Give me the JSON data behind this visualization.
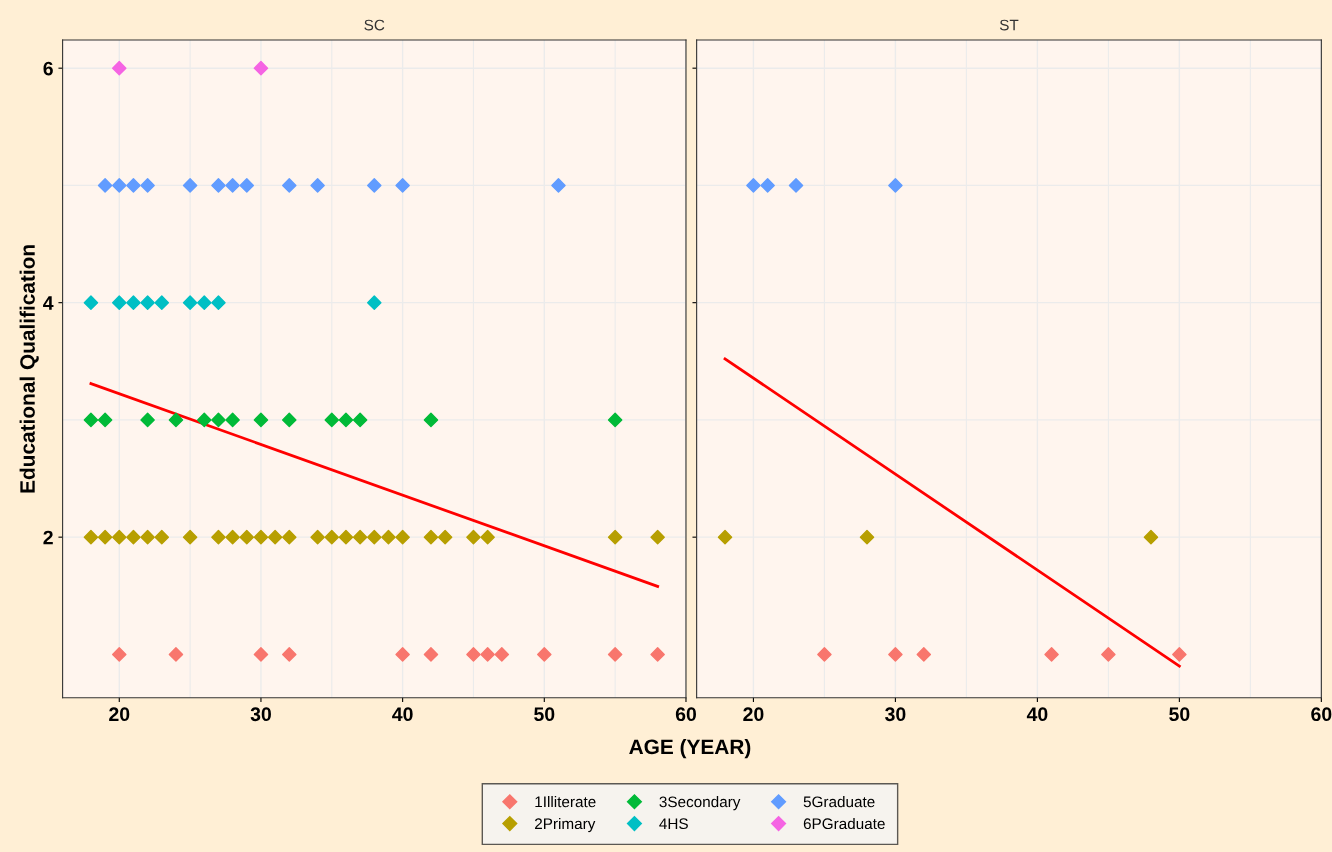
{
  "chart_data": [
    {
      "type": "scatter",
      "title": "SC",
      "xlabel": "AGE (YEAR)",
      "ylabel": "Educational Qualification",
      "xlim": [
        16,
        60
      ],
      "ylim": [
        0.63,
        6.24
      ],
      "xticks": [
        20,
        30,
        40,
        50,
        60
      ],
      "yticks": [
        2,
        4,
        6
      ],
      "grid": true,
      "marker": "diamond",
      "legend": "bottom",
      "series": [
        {
          "name": "1Illiterate",
          "color": "#f8766d",
          "x": [
            20,
            24,
            30,
            32,
            40,
            42,
            45,
            46,
            47,
            50,
            55,
            58
          ],
          "values": [
            1,
            1,
            1,
            1,
            1,
            1,
            1,
            1,
            1,
            1,
            1,
            1
          ]
        },
        {
          "name": "2Primary",
          "color": "#b79f00",
          "x": [
            18,
            19,
            20,
            21,
            22,
            23,
            25,
            27,
            28,
            29,
            30,
            31,
            32,
            34,
            35,
            36,
            37,
            38,
            39,
            40,
            42,
            43,
            45,
            46,
            55,
            58
          ],
          "values": [
            2,
            2,
            2,
            2,
            2,
            2,
            2,
            2,
            2,
            2,
            2,
            2,
            2,
            2,
            2,
            2,
            2,
            2,
            2,
            2,
            2,
            2,
            2,
            2,
            2,
            2
          ]
        },
        {
          "name": "3Secondary",
          "color": "#00ba38",
          "x": [
            18,
            19,
            22,
            24,
            26,
            27,
            28,
            30,
            32,
            35,
            36,
            37,
            42,
            55
          ],
          "values": [
            3,
            3,
            3,
            3,
            3,
            3,
            3,
            3,
            3,
            3,
            3,
            3,
            3,
            3
          ]
        },
        {
          "name": "4HS",
          "color": "#00bfc4",
          "x": [
            18,
            20,
            21,
            22,
            23,
            25,
            26,
            27,
            38
          ],
          "values": [
            4,
            4,
            4,
            4,
            4,
            4,
            4,
            4,
            4
          ]
        },
        {
          "name": "5Graduate",
          "color": "#619cff",
          "x": [
            19,
            20,
            21,
            22,
            25,
            27,
            28,
            29,
            32,
            34,
            38,
            40,
            51
          ],
          "values": [
            5,
            5,
            5,
            5,
            5,
            5,
            5,
            5,
            5,
            5,
            5,
            5,
            5
          ]
        },
        {
          "name": "6PGraduate",
          "color": "#f564e3",
          "x": [
            20,
            30
          ],
          "values": [
            6,
            6
          ]
        },
        {
          "type": "line",
          "color": "#ff0000",
          "marker": "none",
          "x": [
            18,
            58
          ],
          "values": [
            3.31,
            1.58
          ]
        }
      ]
    },
    {
      "type": "scatter",
      "title": "ST",
      "xlim": [
        16,
        60
      ],
      "ylim": [
        0.63,
        6.24
      ],
      "xticks": [
        20,
        30,
        40,
        50,
        60
      ],
      "yticks": [
        2,
        4,
        6
      ],
      "tick_labels": "x",
      "grid": true,
      "marker": "diamond",
      "series": [
        {
          "color": "#f8766d",
          "x": [
            25,
            30,
            32,
            41,
            45,
            50
          ],
          "values": [
            1,
            1,
            1,
            1,
            1,
            1
          ]
        },
        {
          "color": "#b79f00",
          "x": [
            18,
            28,
            48
          ],
          "values": [
            2,
            2,
            2
          ]
        },
        {
          "color": "#619cff",
          "x": [
            20,
            21,
            23,
            30
          ],
          "values": [
            5,
            5,
            5,
            5
          ]
        },
        {
          "type": "line",
          "color": "#ff0000",
          "marker": "none",
          "x": [
            18,
            50
          ],
          "values": [
            3.52,
            0.9
          ]
        }
      ]
    }
  ]
}
